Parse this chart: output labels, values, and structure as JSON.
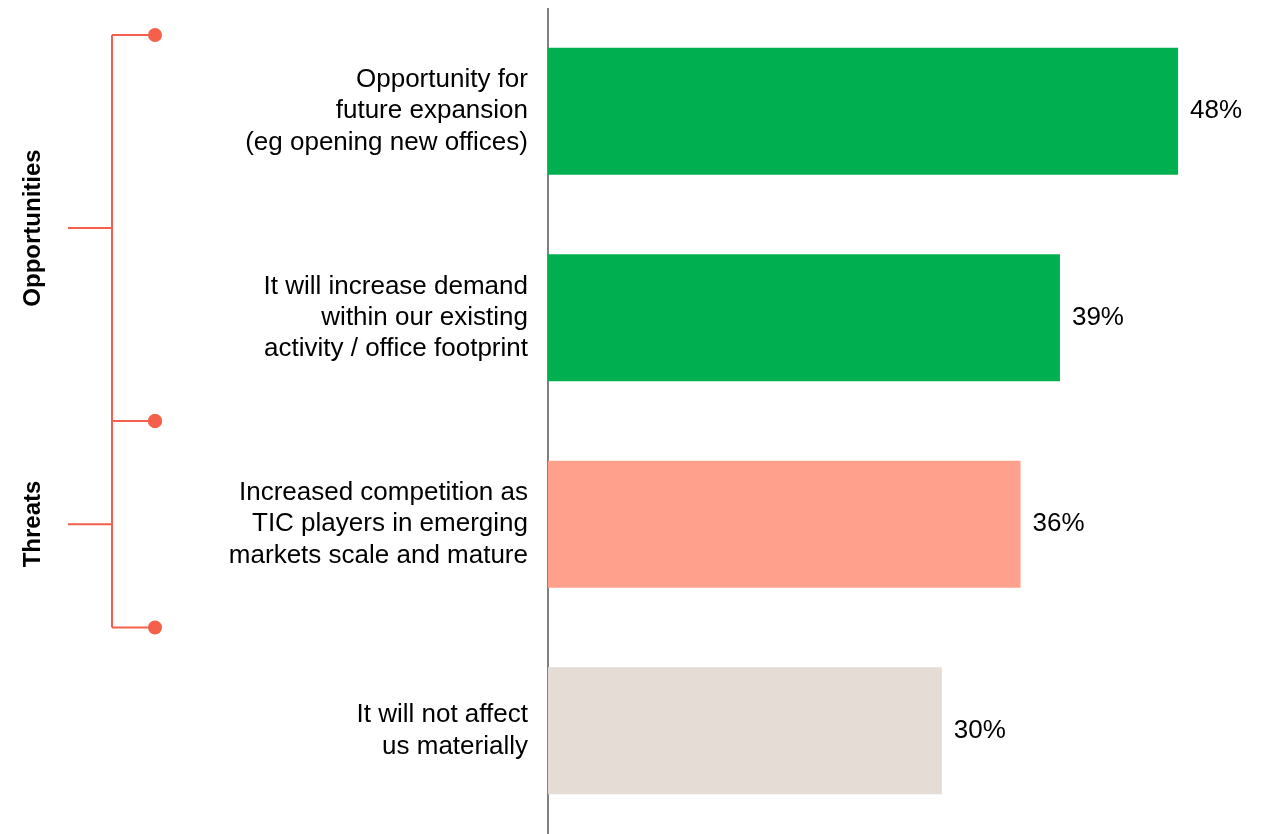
{
  "chart_data": {
    "type": "bar",
    "orientation": "horizontal",
    "categories": [
      "Opportunity for\nfuture expansion\n(eg opening new offices)",
      "It will increase demand\nwithin our existing\nactivity / office footprint",
      "Increased competition as\nTIC players in emerging\nmarkets scale and mature",
      "It will not affect\nus materially"
    ],
    "values": [
      48,
      39,
      36,
      30
    ],
    "colors": [
      "#00b050",
      "#00b050",
      "#ffa08c",
      "#e4dcd5"
    ],
    "value_labels": [
      "48%",
      "39%",
      "36%",
      "30%"
    ],
    "annotations": [
      "Opportunities",
      "Threats"
    ]
  }
}
